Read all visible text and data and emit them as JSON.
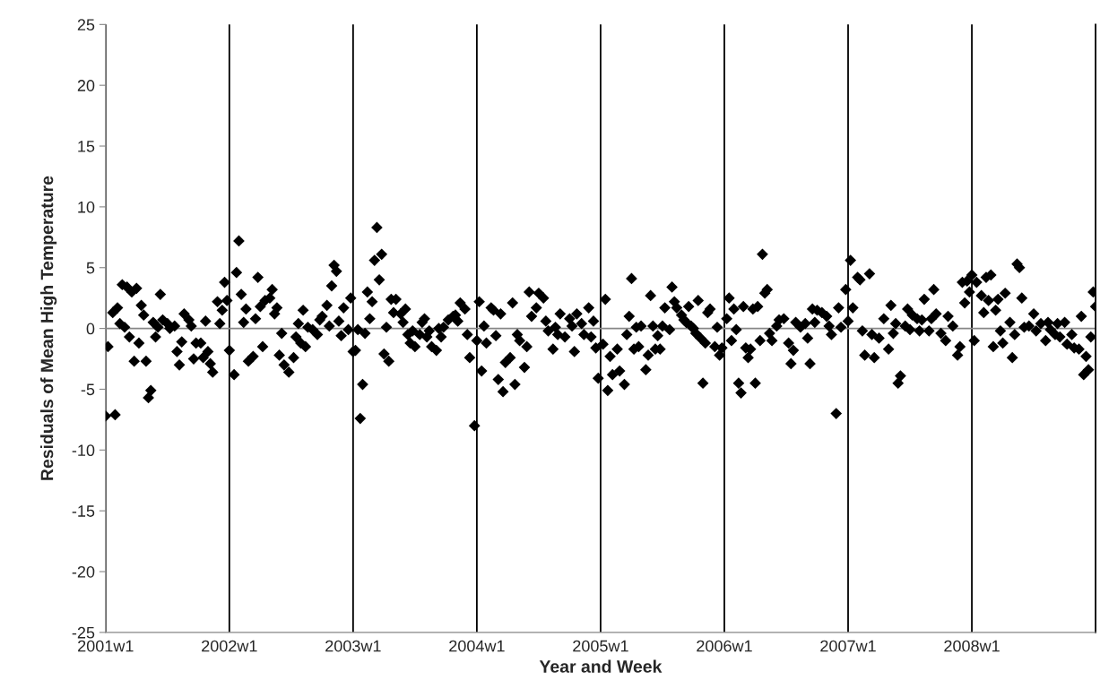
{
  "chart_data": {
    "type": "scatter",
    "xlabel": "Year and Week",
    "ylabel": "Residuals of Mean High Temperature",
    "ylim": [
      -25,
      25
    ],
    "yticks": [
      -25,
      -20,
      -15,
      -10,
      -5,
      0,
      5,
      10,
      15,
      20,
      25
    ],
    "grid": "x",
    "marker": "diamond",
    "ref_lines": [
      {
        "axis": "y",
        "value": 0,
        "color": "#868686"
      }
    ],
    "categories": [
      "2001w1",
      null,
      null,
      null,
      null,
      null,
      null,
      null,
      null,
      null,
      null,
      null,
      null,
      null,
      null,
      null,
      null,
      null,
      null,
      null,
      null,
      null,
      null,
      null,
      null,
      null,
      null,
      null,
      null,
      null,
      null,
      null,
      null,
      null,
      null,
      null,
      null,
      null,
      null,
      null,
      null,
      null,
      null,
      null,
      null,
      null,
      null,
      null,
      null,
      null,
      null,
      null,
      "2002w1",
      null,
      null,
      null,
      null,
      null,
      null,
      null,
      null,
      null,
      null,
      null,
      null,
      null,
      null,
      null,
      null,
      null,
      null,
      null,
      null,
      null,
      null,
      null,
      null,
      null,
      null,
      null,
      null,
      null,
      null,
      null,
      null,
      null,
      null,
      null,
      null,
      null,
      null,
      null,
      null,
      null,
      null,
      null,
      null,
      null,
      null,
      null,
      null,
      null,
      null,
      null,
      "2003w1",
      null,
      null,
      null,
      null,
      null,
      null,
      null,
      null,
      null,
      null,
      null,
      null,
      null,
      null,
      null,
      null,
      null,
      null,
      null,
      null,
      null,
      null,
      null,
      null,
      null,
      null,
      null,
      null,
      null,
      null,
      null,
      null,
      null,
      null,
      null,
      null,
      null,
      null,
      null,
      null,
      null,
      null,
      null,
      null,
      null,
      null,
      null,
      null,
      null,
      null,
      null,
      "2004w1",
      null,
      null,
      null,
      null,
      null,
      null,
      null,
      null,
      null,
      null,
      null,
      null,
      null,
      null,
      null,
      null,
      null,
      null,
      null,
      null,
      null,
      null,
      null,
      null,
      null,
      null,
      null,
      null,
      null,
      null,
      null,
      null,
      null,
      null,
      null,
      null,
      null,
      null,
      null,
      null,
      null,
      null,
      null,
      null,
      null,
      null,
      null,
      null,
      null,
      null,
      null,
      "2005w1",
      null,
      null,
      null,
      null,
      null,
      null,
      null,
      null,
      null,
      null,
      null,
      null,
      null,
      null,
      null,
      null,
      null,
      null,
      null,
      null,
      null,
      null,
      null,
      null,
      null,
      null,
      null,
      null,
      null,
      null,
      null,
      null,
      null,
      null,
      null,
      null,
      null,
      null,
      null,
      null,
      null,
      null,
      null,
      null,
      null,
      null,
      null,
      null,
      null,
      null,
      null,
      "2006w1",
      null,
      null,
      null,
      null,
      null,
      null,
      null,
      null,
      null,
      null,
      null,
      null,
      null,
      null,
      null,
      null,
      null,
      null,
      null,
      null,
      null,
      null,
      null,
      null,
      null,
      null,
      null,
      null,
      null,
      null,
      null,
      null,
      null,
      null,
      null,
      null,
      null,
      null,
      null,
      null,
      null,
      null,
      null,
      null,
      null,
      null,
      null,
      null,
      null,
      null,
      null,
      "2007w1",
      null,
      null,
      null,
      null,
      null,
      null,
      null,
      null,
      null,
      null,
      null,
      null,
      null,
      null,
      null,
      null,
      null,
      null,
      null,
      null,
      null,
      null,
      null,
      null,
      null,
      null,
      null,
      null,
      null,
      null,
      null,
      null,
      null,
      null,
      null,
      null,
      null,
      null,
      null,
      null,
      null,
      null,
      null,
      null,
      null,
      null,
      null,
      null,
      null,
      null,
      null,
      "2008w1",
      null,
      null,
      null,
      null,
      null,
      null,
      null,
      null,
      null,
      null,
      null,
      null,
      null,
      null,
      null,
      null,
      null,
      null,
      null,
      null,
      null,
      null,
      null,
      null,
      null,
      null,
      null,
      null,
      null,
      null,
      null,
      null,
      null,
      null,
      null,
      null,
      null,
      null,
      null,
      null,
      null,
      null,
      null,
      null,
      null,
      null,
      null,
      null,
      null,
      null,
      null,
      null
    ],
    "series": [
      {
        "color": "#000000",
        "values": [
          -7.2,
          -1.5,
          null,
          1.3,
          -7.1,
          1.7,
          0.4,
          3.6,
          0.1,
          3.4,
          -0.7,
          3.0,
          -2.7,
          3.3,
          -1.2,
          1.9,
          1.1,
          -2.7,
          -5.7,
          -5.1,
          0.5,
          -0.7,
          0.1,
          2.8,
          0.7,
          null,
          0.4,
          0,
          null,
          0.2,
          -1.9,
          -3.0,
          -1.1,
          1.2,
          null,
          0.7,
          0.2,
          -2.5,
          -1.2,
          null,
          -1.2,
          -2.4,
          0.6,
          -1.9,
          -2.9,
          -3.6,
          null,
          2.2,
          0.4,
          1.5,
          3.8,
          2.3,
          -1.8,
          null,
          -3.8,
          4.6,
          7.2,
          2.8,
          0.5,
          1.6,
          -2.7,
          null,
          -2.3,
          0.8,
          4.2,
          1.8,
          -1.5,
          2.3,
          null,
          2.5,
          3.2,
          1.2,
          1.7,
          -2.2,
          -0.4,
          -3.0,
          null,
          -3.6,
          null,
          -2.4,
          -0.7,
          0.4,
          -1.2,
          1.5,
          -1.5,
          0.1,
          null,
          -0.1,
          null,
          -0.5,
          0.7,
          1.0,
          null,
          1.9,
          0.2,
          3.5,
          5.2,
          4.7,
          0.6,
          -0.6,
          1.7,
          null,
          -0.1,
          2.5,
          -1.9,
          -1.8,
          -0.1,
          -7.4,
          -4.6,
          -0.4,
          3.0,
          0.8,
          2.2,
          5.6,
          8.3,
          4.0,
          6.1,
          -2.1,
          0.1,
          -2.7,
          2.4,
          1.3,
          2.4,
          null,
          1.2,
          0.5,
          1.6,
          -0.5,
          -1.2,
          -0.2,
          -1.5,
          null,
          -0.5,
          0.5,
          0.8,
          -0.7,
          -0.2,
          -1.5,
          null,
          -1.8,
          0,
          -0.7,
          0.1,
          null,
          0.7,
          null,
          1.0,
          1.1,
          0.6,
          2.1,
          null,
          1.6,
          -0.5,
          -2.4,
          null,
          -8.0,
          -1.0,
          2.2,
          -3.5,
          0.2,
          -1.2,
          null,
          1.7,
          1.5,
          -0.6,
          -4.2,
          1.2,
          -5.2,
          -2.8,
          null,
          -2.4,
          2.1,
          -4.6,
          -0.5,
          -1.0,
          null,
          -3.2,
          -1.5,
          3.0,
          1.0,
          null,
          1.7,
          2.9,
          null,
          2.5,
          0.6,
          -0.2,
          null,
          -1.7,
          0.1,
          -0.5,
          1.2,
          null,
          -0.7,
          null,
          0.8,
          0.2,
          -1.9,
          1.2,
          null,
          0.4,
          -0.5,
          null,
          1.7,
          -0.7,
          0.6,
          -1.6,
          -4.1,
          null,
          -1.3,
          2.4,
          -5.1,
          -2.3,
          -3.8,
          null,
          -1.7,
          -3.5,
          null,
          -4.6,
          -0.5,
          1.0,
          4.1,
          -1.7,
          0.1,
          -1.5,
          0.2,
          null,
          -3.4,
          -2.2,
          2.7,
          0.2,
          -1.7,
          -0.6,
          -1.7,
          0.2,
          1.7,
          null,
          -0.1,
          3.4,
          2.2,
          1.7,
          null,
          1.1,
          0.7,
          0.5,
          1.8,
          0.2,
          0,
          -0.4,
          2.3,
          -0.8,
          -4.5,
          -1.2,
          1.3,
          1.6,
          null,
          -1.5,
          0.1,
          -2.2,
          -1.6,
          null,
          0.8,
          2.5,
          -1.0,
          1.6,
          -0.1,
          -4.5,
          -5.3,
          1.8,
          -1.6,
          -2.4,
          -1.7,
          1.6,
          -4.5,
          1.8,
          -1.0,
          6.1,
          2.9,
          3.2,
          -0.4,
          -1.0,
          null,
          0.2,
          0.7,
          null,
          0.8,
          null,
          -1.2,
          -2.9,
          -1.8,
          0.5,
          null,
          0.1,
          null,
          0.4,
          -0.8,
          -2.9,
          1.6,
          0.5,
          1.5,
          null,
          1.3,
          null,
          1.0,
          0.2,
          -0.5,
          null,
          -7.0,
          1.7,
          0.1,
          null,
          3.2,
          0.6,
          5.6,
          1.7,
          null,
          4.2,
          4.0,
          -0.2,
          -2.2,
          null,
          4.5,
          -0.5,
          -2.4,
          null,
          -0.8,
          null,
          0.8,
          null,
          -1.7,
          1.9,
          -0.4,
          0.4,
          -4.5,
          -3.9,
          null,
          0.2,
          1.6,
          -0.1,
          1.1,
          null,
          0.8,
          -0.2,
          0.7,
          2.4,
          null,
          -0.2,
          0.8,
          3.2,
          1.2,
          null,
          -0.4,
          null,
          -1.0,
          1.0,
          null,
          0.2,
          null,
          -2.2,
          -1.5,
          3.8,
          2.1,
          3.9,
          3.0,
          4.4,
          -1.0,
          3.8,
          null,
          2.7,
          1.3,
          4.2,
          2.3,
          4.4,
          -1.5,
          1.5,
          2.4,
          -0.2,
          -1.2,
          2.9,
          null,
          0.5,
          -2.4,
          -0.5,
          5.3,
          5.0,
          2.5,
          0.1,
          null,
          0.2,
          null,
          1.2,
          -0.2,
          null,
          0.4,
          null,
          -1.0,
          0.5,
          -0.1,
          null,
          -0.5,
          0.4,
          -0.7,
          null,
          0.5,
          -1.3,
          null,
          -0.5,
          -1.6,
          null,
          -1.7,
          1.0,
          -3.8,
          -2.3,
          -3.4,
          -0.7,
          3.0,
          1.8
        ]
      }
    ]
  }
}
